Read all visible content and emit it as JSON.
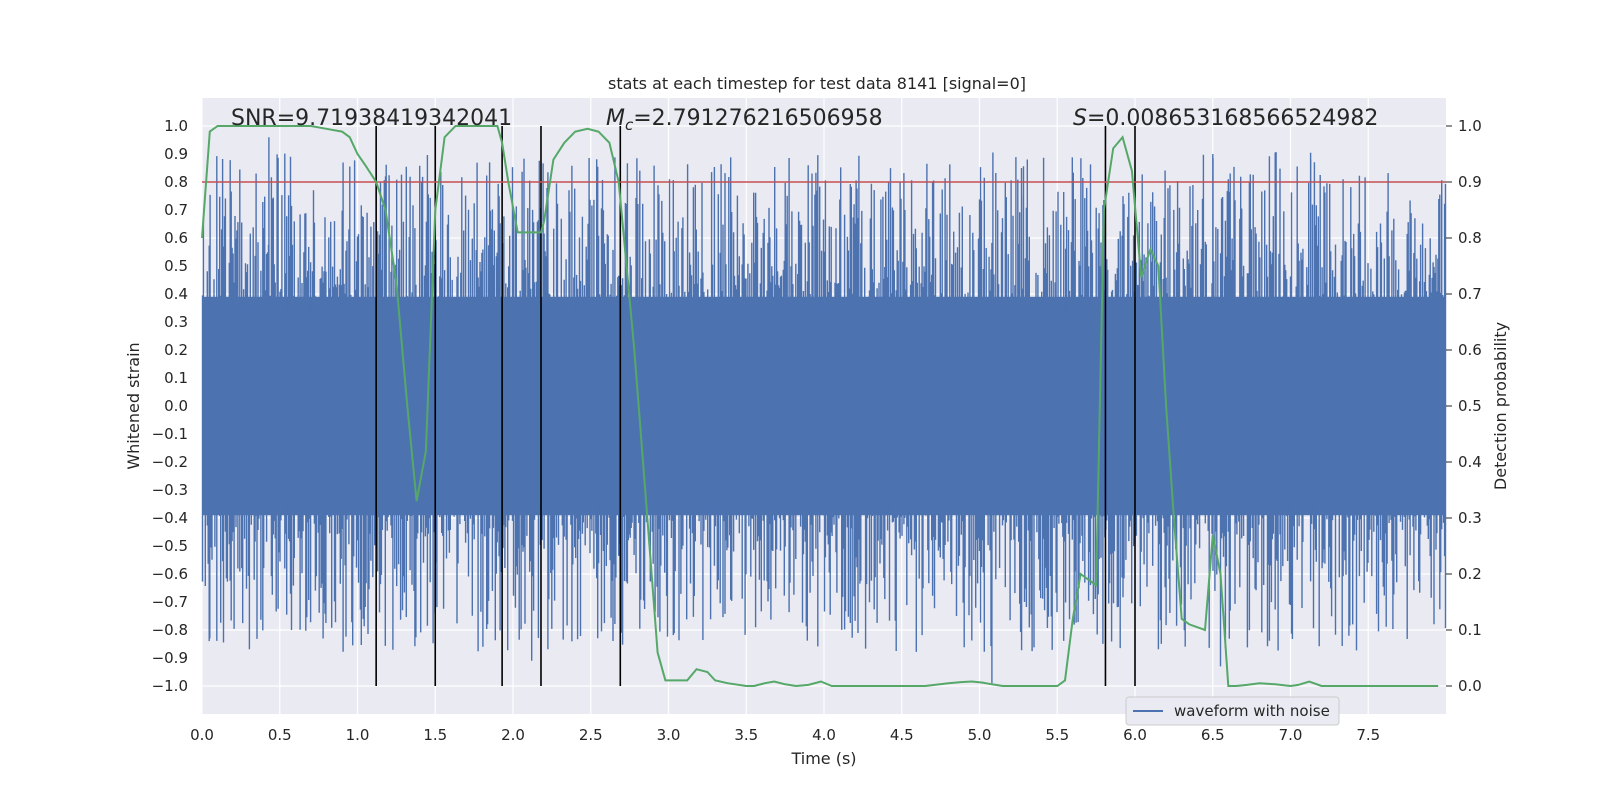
{
  "chart_data": {
    "type": "line",
    "title": "stats at each timestep for test data 8141 [signal=0]",
    "xlabel": "Time (s)",
    "ylabel_left": "Whitened strain",
    "ylabel_right": "Detection probability",
    "xlim": [
      0,
      8
    ],
    "ylim_left": [
      -1.1,
      1.1
    ],
    "ylim_right": [
      -0.05,
      1.05
    ],
    "x_ticks": [
      "0.0",
      "0.5",
      "1.0",
      "1.5",
      "2.0",
      "2.5",
      "3.0",
      "3.5",
      "4.0",
      "4.5",
      "5.0",
      "5.5",
      "6.0",
      "6.5",
      "7.0",
      "7.5"
    ],
    "y_left_ticks": [
      "1.0",
      "0.9",
      "0.8",
      "0.7",
      "0.6",
      "0.5",
      "0.4",
      "0.3",
      "0.2",
      "0.1",
      "0.0",
      "−0.1",
      "−0.2",
      "−0.3",
      "−0.4",
      "−0.5",
      "−0.6",
      "−0.7",
      "−0.8",
      "−0.9",
      "−1.0"
    ],
    "y_right_ticks": [
      "1.0",
      "0.9",
      "0.8",
      "0.7",
      "0.6",
      "0.5",
      "0.4",
      "0.3",
      "0.2",
      "0.1",
      "0.0"
    ],
    "grid": true,
    "threshold": {
      "value": 0.9,
      "axis": "right",
      "color": "#c44e52"
    },
    "vertical_markers": [
      1.12,
      1.5,
      1.93,
      2.18,
      2.69,
      5.81,
      6.0
    ],
    "annotations": {
      "snr": "SNR=9.71938419342041",
      "mc_symbol": "M",
      "mc_subscript": "c",
      "mc_value": "=2.791276216506958",
      "s_symbol": "S",
      "s_value": "=0.008653168566524982"
    },
    "series": [
      {
        "name": "waveform with noise",
        "axis": "left",
        "color": "#4c72b0",
        "style": "dense noise, band approx -0.4 to 0.4 with spikes up to 0.96 and down to -0.95"
      },
      {
        "name": "detection probability",
        "axis": "right",
        "color": "#55a868",
        "x": [
          0.0,
          0.05,
          0.1,
          0.2,
          0.3,
          0.4,
          0.5,
          0.6,
          0.7,
          0.8,
          0.9,
          0.95,
          1.0,
          1.05,
          1.12,
          1.18,
          1.25,
          1.32,
          1.38,
          1.44,
          1.5,
          1.56,
          1.63,
          1.7,
          1.78,
          1.85,
          1.9,
          1.93,
          1.97,
          2.03,
          2.1,
          2.18,
          2.2,
          2.26,
          2.33,
          2.4,
          2.48,
          2.55,
          2.62,
          2.68,
          2.72,
          2.78,
          2.85,
          2.93,
          2.98,
          3.05,
          3.12,
          3.18,
          3.25,
          3.3,
          3.38,
          3.5,
          3.55,
          3.62,
          3.68,
          3.75,
          3.82,
          3.9,
          3.98,
          4.05,
          4.12,
          4.2,
          4.35,
          4.5,
          4.65,
          4.8,
          4.88,
          4.95,
          5.02,
          5.08,
          5.15,
          5.22,
          5.3,
          5.4,
          5.5,
          5.55,
          5.6,
          5.65,
          5.7,
          5.75,
          5.8,
          5.86,
          5.92,
          5.98,
          6.04,
          6.1,
          6.15,
          6.2,
          6.25,
          6.3,
          6.35,
          6.45,
          6.5,
          6.55,
          6.6,
          6.65,
          6.72,
          6.8,
          6.9,
          7.0,
          7.05,
          7.12,
          7.2,
          7.3,
          7.4,
          7.5,
          7.6,
          7.7,
          7.8,
          7.95
        ],
        "values": [
          0.8,
          0.99,
          1.0,
          1.0,
          1.0,
          1.0,
          1.0,
          1.0,
          1.0,
          0.995,
          0.99,
          0.98,
          0.95,
          0.93,
          0.9,
          0.85,
          0.72,
          0.5,
          0.33,
          0.42,
          0.85,
          0.98,
          1.0,
          1.0,
          1.0,
          1.0,
          1.0,
          0.97,
          0.9,
          0.81,
          0.81,
          0.81,
          0.83,
          0.94,
          0.97,
          0.99,
          0.995,
          0.99,
          0.97,
          0.9,
          0.78,
          0.6,
          0.35,
          0.06,
          0.01,
          0.01,
          0.01,
          0.03,
          0.025,
          0.01,
          0.005,
          0.0,
          0.0,
          0.005,
          0.008,
          0.003,
          0.0,
          0.002,
          0.008,
          0.0,
          0.0,
          0.0,
          0.0,
          0.0,
          0.0,
          0.005,
          0.007,
          0.008,
          0.006,
          0.003,
          0.0,
          0.0,
          0.0,
          0.0,
          0.0,
          0.01,
          0.12,
          0.2,
          0.19,
          0.18,
          0.85,
          0.96,
          0.98,
          0.92,
          0.73,
          0.78,
          0.75,
          0.5,
          0.3,
          0.12,
          0.11,
          0.1,
          0.27,
          0.2,
          0.0,
          0.0,
          0.002,
          0.005,
          0.003,
          0.0,
          0.002,
          0.008,
          0.0,
          0.0,
          0.0,
          0.0,
          0.0,
          0.0,
          0.0,
          0.0
        ]
      }
    ],
    "legend": {
      "placement": "bottom-right",
      "entries": [
        "waveform with noise"
      ]
    }
  }
}
